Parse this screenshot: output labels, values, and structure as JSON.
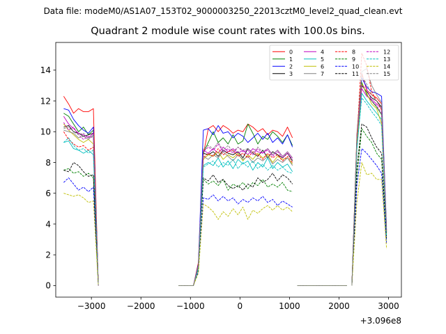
{
  "figure": {
    "suptitle": "Data file: modeM0/AS1A07_153T02_9000003250_22013cztM0_level2_quad_clean.evt"
  },
  "chart_data": {
    "type": "line",
    "title": "Quadrant 2 module wise count rates with 100.0s bins.",
    "xlabel": "",
    "ylabel": "",
    "x_offset_label": "+3.096e8",
    "xlim": [
      -3720,
      3260
    ],
    "ylim": [
      -0.75,
      15.8
    ],
    "xticks": [
      -3000,
      -2000,
      -1000,
      0,
      1000,
      2000,
      3000
    ],
    "xtick_labels": [
      "−3000",
      "−2000",
      "−1000",
      "0",
      "1000",
      "2000",
      "3000"
    ],
    "yticks": [
      0,
      2,
      4,
      6,
      8,
      10,
      12,
      14
    ],
    "ytick_labels": [
      "0",
      "2",
      "4",
      "6",
      "8",
      "10",
      "12",
      "14"
    ],
    "legend_position": "top-right",
    "legend_columns": 4,
    "segments": [
      {
        "x": [
          -3560,
          -3460,
          -3360,
          -3260,
          -3160,
          -3060,
          -2960,
          -2860
        ]
      },
      {
        "x": [
          -1240,
          -1140,
          -1040,
          -940,
          -840,
          -740,
          -640,
          -540,
          -440,
          -340,
          -240,
          -140,
          -40,
          60,
          160,
          260,
          360,
          460,
          560,
          660,
          760,
          860,
          960,
          1060
        ]
      },
      {
        "x": [
          1160,
          1260,
          1360,
          1460,
          1560,
          1660,
          1760,
          1860,
          1960,
          2060,
          2160
        ]
      },
      {
        "x": [
          2260,
          2360,
          2460,
          2560,
          2660,
          2760,
          2860,
          2960
        ]
      }
    ],
    "series": [
      {
        "name": "0",
        "color": "#ff0000",
        "dash": "solid",
        "segments": [
          [
            12.3,
            11.8,
            11.2,
            11.5,
            11.3,
            11.3,
            11.5,
            0
          ],
          [
            0,
            0,
            0,
            0,
            1.5,
            8.5,
            10.2,
            10.4,
            10.0,
            10.4,
            10.2,
            9.9,
            10.1,
            10.0,
            10.5,
            10.3,
            10.0,
            10.2,
            9.8,
            10.1,
            10.0,
            9.7,
            10.3,
            9.6
          ],
          [
            0,
            0,
            0,
            0,
            0,
            0,
            0,
            0,
            0,
            0,
            0
          ],
          [
            0,
            9.8,
            13.8,
            12.7,
            12.4,
            12.2,
            11.8,
            3.6
          ]
        ]
      },
      {
        "name": "1",
        "color": "#008000",
        "dash": "solid",
        "segments": [
          [
            11.2,
            11.0,
            10.5,
            10.0,
            10.3,
            9.8,
            10.1,
            0
          ],
          [
            0,
            0,
            0,
            0,
            1.2,
            8.6,
            9.3,
            10.0,
            9.3,
            9.6,
            9.2,
            9.8,
            9.2,
            9.4,
            10.5,
            9.9,
            9.2,
            9.7,
            9.5,
            10.0,
            9.7,
            9.3,
            9.8,
            9.1
          ],
          [
            0,
            0,
            0,
            0,
            0,
            0,
            0,
            0,
            0,
            0,
            0
          ],
          [
            0,
            9.2,
            13.2,
            12.4,
            12.0,
            11.6,
            11.1,
            3.5
          ]
        ]
      },
      {
        "name": "2",
        "color": "#0000ff",
        "dash": "solid",
        "segments": [
          [
            11.5,
            11.4,
            10.8,
            10.4,
            10.1,
            9.9,
            10.3,
            0
          ],
          [
            0,
            0,
            0,
            0,
            1.4,
            10.1,
            10.2,
            9.8,
            10.4,
            9.9,
            10.0,
            9.6,
            9.9,
            9.7,
            9.3,
            9.6,
            9.9,
            9.5,
            9.9,
            9.3,
            9.6,
            9.2,
            9.8,
            9.0
          ],
          [
            0,
            0,
            0,
            0,
            0,
            0,
            0,
            0,
            0,
            0,
            0
          ],
          [
            0,
            9.5,
            13.5,
            12.9,
            12.6,
            12.5,
            12.3,
            3.8
          ]
        ]
      },
      {
        "name": "3",
        "color": "#000000",
        "dash": "solid",
        "segments": [
          [
            10.3,
            10.4,
            10.0,
            9.9,
            9.7,
            9.8,
            9.9,
            0
          ],
          [
            0,
            0,
            0,
            0,
            1.2,
            8.6,
            8.5,
            8.7,
            8.4,
            8.8,
            8.6,
            8.5,
            8.7,
            8.3,
            8.9,
            8.6,
            8.4,
            8.8,
            8.3,
            8.7,
            8.5,
            8.3,
            8.6,
            8.1
          ],
          [
            0,
            0,
            0,
            0,
            0,
            0,
            0,
            0,
            0,
            0,
            0
          ],
          [
            0,
            9.0,
            13.0,
            12.6,
            12.2,
            12.0,
            11.6,
            3.4
          ]
        ]
      },
      {
        "name": "4",
        "color": "#bf00bf",
        "dash": "solid",
        "segments": [
          [
            11.0,
            10.5,
            10.2,
            9.9,
            9.8,
            9.6,
            9.9,
            0
          ],
          [
            0,
            0,
            0,
            0,
            1.3,
            8.8,
            8.6,
            8.9,
            8.6,
            9.0,
            8.7,
            8.9,
            8.6,
            8.8,
            8.5,
            8.9,
            8.7,
            8.6,
            8.9,
            8.5,
            8.8,
            8.4,
            8.7,
            8.3
          ],
          [
            0,
            0,
            0,
            0,
            0,
            0,
            0,
            0,
            0,
            0,
            0
          ],
          [
            0,
            9.3,
            12.8,
            12.3,
            12.1,
            11.8,
            11.5,
            3.6
          ]
        ]
      },
      {
        "name": "5",
        "color": "#00bfbf",
        "dash": "solid",
        "segments": [
          [
            9.3,
            9.4,
            8.9,
            8.8,
            8.6,
            8.8,
            8.5,
            0
          ],
          [
            0,
            0,
            0,
            0,
            1.1,
            7.8,
            8.0,
            7.8,
            8.3,
            7.7,
            8.1,
            7.6,
            8.2,
            7.9,
            8.1,
            7.5,
            8.0,
            7.7,
            8.3,
            7.6,
            8.0,
            7.7,
            7.9,
            7.4
          ],
          [
            0,
            0,
            0,
            0,
            0,
            0,
            0,
            0,
            0,
            0,
            0
          ],
          [
            0,
            8.8,
            12.5,
            12.0,
            11.6,
            11.2,
            10.8,
            3.3
          ]
        ]
      },
      {
        "name": "6",
        "color": "#bfbf00",
        "dash": "solid",
        "segments": [
          [
            10.5,
            10.1,
            9.8,
            9.5,
            9.3,
            9.5,
            9.2,
            0
          ],
          [
            0,
            0,
            0,
            0,
            1.2,
            8.2,
            8.5,
            8.4,
            8.7,
            8.2,
            8.5,
            8.3,
            8.6,
            8.1,
            8.5,
            8.2,
            8.6,
            8.3,
            8.5,
            8.0,
            8.4,
            8.2,
            8.3,
            7.9
          ],
          [
            0,
            0,
            0,
            0,
            0,
            0,
            0,
            0,
            0,
            0,
            0
          ],
          [
            0,
            9.1,
            13.1,
            12.5,
            11.8,
            11.5,
            10.5,
            3.2
          ]
        ]
      },
      {
        "name": "7",
        "color": "#808080",
        "dash": "solid",
        "segments": [
          [
            10.1,
            10.0,
            9.9,
            9.6,
            9.7,
            9.5,
            9.8,
            0
          ],
          [
            0,
            0,
            0,
            0,
            1.3,
            8.4,
            8.2,
            8.5,
            8.3,
            8.7,
            8.4,
            8.1,
            8.5,
            8.2,
            8.4,
            8.0,
            8.3,
            8.1,
            8.4,
            7.9,
            8.2,
            8.0,
            8.3,
            7.8
          ],
          [
            0,
            0,
            0,
            0,
            0,
            0,
            0,
            0,
            0,
            0,
            0
          ],
          [
            0,
            9.6,
            13.9,
            14.1,
            13.0,
            12.4,
            11.9,
            3.7
          ]
        ]
      },
      {
        "name": "8",
        "color": "#ff0000",
        "dash": "dashed",
        "segments": [
          [
            10.0,
            9.5,
            9.2,
            9.0,
            9.1,
            8.8,
            9.0,
            0
          ],
          [
            0,
            0,
            0,
            0,
            1.2,
            8.3,
            8.6,
            8.4,
            8.9,
            8.5,
            8.7,
            8.8,
            8.4,
            8.6,
            8.3,
            8.7,
            8.5,
            8.2,
            8.6,
            8.3,
            8.5,
            8.1,
            8.4,
            8.0
          ],
          [
            0,
            0,
            0,
            0,
            0,
            0,
            0,
            0,
            0,
            0,
            0
          ],
          [
            0,
            9.4,
            15.1,
            14.3,
            12.6,
            12.0,
            11.4,
            3.5
          ]
        ]
      },
      {
        "name": "9",
        "color": "#008000",
        "dash": "dashed",
        "segments": [
          [
            7.5,
            7.6,
            7.3,
            7.4,
            7.1,
            7.3,
            7.0,
            0
          ],
          [
            0,
            0,
            0,
            0,
            1.0,
            6.9,
            6.6,
            6.8,
            6.5,
            6.9,
            6.2,
            6.6,
            6.4,
            6.7,
            6.3,
            6.7,
            6.5,
            6.9,
            6.4,
            6.6,
            6.4,
            6.7,
            6.2,
            6.1
          ],
          [
            0,
            0,
            0,
            0,
            0,
            0,
            0,
            0,
            0,
            0,
            0
          ],
          [
            0,
            7.0,
            10.2,
            9.7,
            9.3,
            8.6,
            8.2,
            2.9
          ]
        ]
      },
      {
        "name": "10",
        "color": "#0000ff",
        "dash": "dashed",
        "segments": [
          [
            6.7,
            7.0,
            6.6,
            6.2,
            6.4,
            6.1,
            6.4,
            0
          ],
          [
            0,
            0,
            0,
            0,
            0.9,
            5.7,
            5.6,
            5.9,
            5.5,
            5.8,
            5.5,
            5.7,
            5.3,
            5.6,
            5.4,
            5.7,
            5.5,
            5.8,
            5.4,
            5.6,
            5.2,
            5.5,
            5.3,
            5.1
          ],
          [
            0,
            0,
            0,
            0,
            0,
            0,
            0,
            0,
            0,
            0,
            0
          ],
          [
            0,
            6.5,
            8.9,
            8.6,
            8.2,
            7.8,
            7.3,
            2.7
          ]
        ]
      },
      {
        "name": "11",
        "color": "#000000",
        "dash": "dashed",
        "segments": [
          [
            7.5,
            7.4,
            8.0,
            7.8,
            7.4,
            7.1,
            7.2,
            0
          ],
          [
            0,
            0,
            0,
            0,
            1.1,
            7.0,
            6.8,
            7.2,
            6.7,
            6.9,
            6.5,
            6.3,
            6.5,
            6.2,
            6.6,
            6.4,
            7.0,
            6.7,
            6.9,
            7.3,
            6.8,
            7.2,
            7.0,
            6.6
          ],
          [
            0,
            0,
            0,
            0,
            0,
            0,
            0,
            0,
            0,
            0,
            0
          ],
          [
            0,
            7.6,
            10.5,
            10.3,
            9.6,
            9.0,
            8.6,
            3.1
          ]
        ]
      },
      {
        "name": "12",
        "color": "#bf00bf",
        "dash": "dashed",
        "segments": [
          [
            10.6,
            10.1,
            10.3,
            9.8,
            9.5,
            9.7,
            9.6,
            0
          ],
          [
            0,
            0,
            0,
            0,
            1.3,
            8.7,
            9.0,
            8.8,
            9.2,
            8.7,
            8.9,
            8.6,
            9.0,
            8.7,
            8.8,
            8.5,
            8.9,
            8.6,
            8.8,
            8.4,
            8.7,
            8.3,
            8.6,
            8.2
          ],
          [
            0,
            0,
            0,
            0,
            0,
            0,
            0,
            0,
            0,
            0,
            0
          ],
          [
            0,
            9.5,
            13.0,
            12.8,
            12.0,
            11.7,
            11.2,
            3.6
          ]
        ]
      },
      {
        "name": "13",
        "color": "#00bfbf",
        "dash": "dashed",
        "segments": [
          [
            9.3,
            9.6,
            9.1,
            8.8,
            8.9,
            8.6,
            8.8,
            0
          ],
          [
            0,
            0,
            0,
            0,
            1.1,
            7.7,
            7.9,
            8.1,
            7.7,
            8.0,
            7.8,
            8.2,
            7.6,
            8.0,
            7.7,
            8.1,
            7.6,
            7.9,
            7.5,
            7.8,
            7.5,
            7.7,
            7.4,
            7.3
          ],
          [
            0,
            0,
            0,
            0,
            0,
            0,
            0,
            0,
            0,
            0,
            0
          ],
          [
            0,
            8.9,
            12.2,
            11.8,
            11.3,
            10.9,
            10.4,
            3.2
          ]
        ]
      },
      {
        "name": "14",
        "color": "#bfbf00",
        "dash": "dashed",
        "segments": [
          [
            6.0,
            5.9,
            5.8,
            5.9,
            5.7,
            5.4,
            5.5,
            0
          ],
          [
            0,
            0,
            0,
            0,
            0.8,
            5.3,
            5.1,
            4.8,
            4.3,
            4.8,
            4.5,
            5.0,
            4.6,
            5.1,
            4.3,
            4.9,
            4.7,
            5.0,
            5.2,
            4.9,
            5.2,
            4.9,
            5.1,
            4.8
          ],
          [
            0,
            0,
            0,
            0,
            0,
            0,
            0,
            0,
            0,
            0,
            0
          ],
          [
            0,
            5.4,
            8.0,
            7.2,
            7.3,
            6.9,
            6.9,
            2.4
          ]
        ]
      },
      {
        "name": "15",
        "color": "#808080",
        "dash": "dashed",
        "segments": [
          [
            10.2,
            10.3,
            10.0,
            9.8,
            9.9,
            9.6,
            9.7,
            0
          ],
          [
            0,
            0,
            0,
            0,
            1.3,
            8.9,
            9.1,
            8.9,
            9.3,
            8.8,
            9.1,
            8.7,
            9.0,
            8.8,
            8.9,
            8.6,
            9.0,
            8.7,
            8.9,
            8.5,
            8.8,
            8.4,
            8.7,
            8.3
          ],
          [
            0,
            0,
            0,
            0,
            0,
            0,
            0,
            0,
            0,
            0,
            0
          ],
          [
            0,
            9.7,
            13.6,
            13.1,
            12.4,
            12.0,
            11.5,
            3.6
          ]
        ]
      }
    ]
  }
}
